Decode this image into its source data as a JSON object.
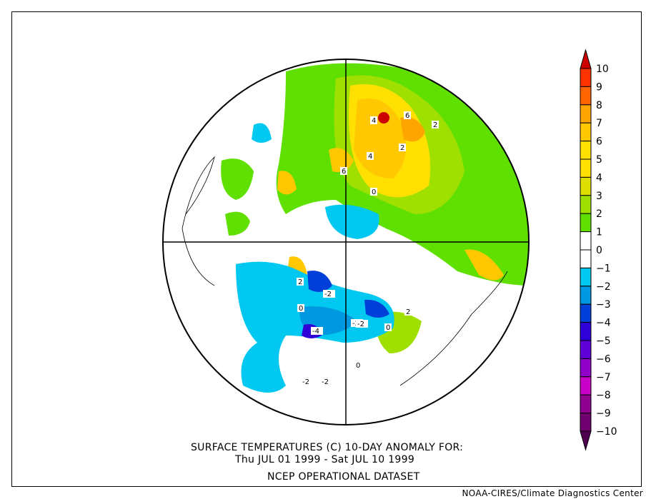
{
  "title": {
    "line1": "SURFACE TEMPERATURES (C)   10-DAY ANOMALY FOR:",
    "line2": "Thu JUL 01 1999 - Sat JUL 10 1999",
    "line3": "NCEP OPERATIONAL DATASET"
  },
  "credit": "NOAA-CIRES/Climate Diagnostics Center",
  "colorbar": {
    "labels": [
      "10",
      "9",
      "8",
      "7",
      "6",
      "5",
      "4",
      "3",
      "2",
      "1",
      "0",
      "-1",
      "-2",
      "-3",
      "-4",
      "-5",
      "-6",
      "-7",
      "-8",
      "-9",
      "-10"
    ],
    "top_arrow_color": "#cc0000",
    "bottom_arrow_color": "#500050",
    "colors": [
      "#ff3300",
      "#ff6600",
      "#ffa500",
      "#ffc800",
      "#ffe000",
      "#ffe000",
      "#e0e000",
      "#a0e000",
      "#60e000",
      "#ffffff",
      "#ffffff",
      "#00c8f0",
      "#0098e0",
      "#0040d8",
      "#3000d8",
      "#6000d8",
      "#9000c8",
      "#c800c8",
      "#900090",
      "#700070"
    ]
  },
  "map": {
    "contour_labels": [
      {
        "text": "4"
      },
      {
        "text": "6"
      },
      {
        "text": "2"
      },
      {
        "text": "4"
      },
      {
        "text": "6"
      },
      {
        "text": "2"
      },
      {
        "text": "0"
      },
      {
        "text": "2"
      },
      {
        "text": "-2"
      },
      {
        "text": "-2"
      },
      {
        "text": "-4"
      },
      {
        "text": "-2"
      },
      {
        "text": "-2"
      },
      {
        "text": "-2"
      },
      {
        "text": "0"
      },
      {
        "text": "2"
      },
      {
        "text": "0"
      },
      {
        "text": "0"
      }
    ]
  }
}
